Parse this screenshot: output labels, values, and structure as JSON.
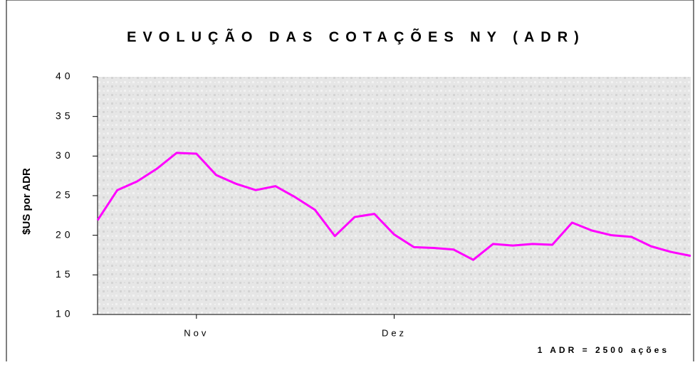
{
  "chart_data": {
    "type": "line",
    "title": "EVOLUÇÃO DAS COTAÇÕES NY (ADR)",
    "y_label": "$US por ADR",
    "note": "1 ADR = 2500 ações",
    "categories": [
      null,
      null,
      null,
      null,
      null,
      "Nov",
      null,
      null,
      null,
      null,
      null,
      null,
      null,
      null,
      null,
      "Dez",
      null,
      null,
      null,
      null,
      null,
      null,
      null,
      null,
      null,
      null,
      null,
      null,
      null,
      null,
      null
    ],
    "series": [
      {
        "name": "ADR",
        "color": "#ff00ff",
        "values": [
          21.9,
          25.7,
          26.8,
          28.4,
          30.4,
          30.3,
          27.6,
          26.5,
          25.7,
          26.2,
          24.8,
          23.2,
          19.9,
          22.3,
          22.7,
          20.1,
          18.5,
          18.4,
          18.2,
          16.9,
          18.9,
          18.7,
          18.9,
          18.8,
          21.6,
          20.6,
          20.0,
          19.8,
          18.6,
          17.9,
          17.4
        ]
      }
    ],
    "ylim": [
      10,
      40
    ],
    "yticks": [
      10,
      15,
      20,
      25,
      30,
      35,
      40
    ]
  }
}
